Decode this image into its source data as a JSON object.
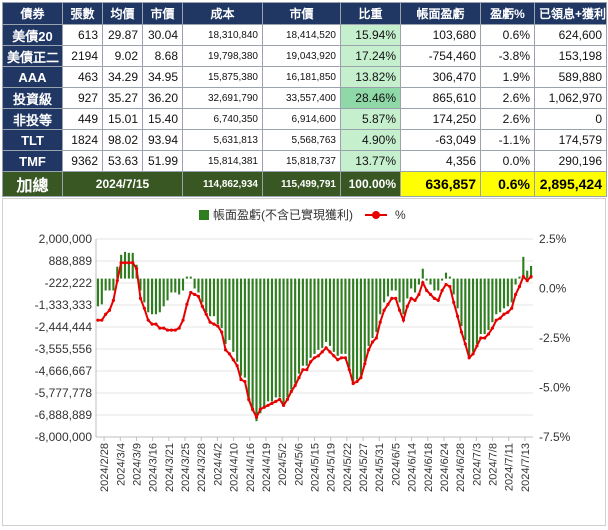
{
  "table": {
    "headers": [
      "債券",
      "張數",
      "均價",
      "市價",
      "成本",
      "市價",
      "比重",
      "帳面盈虧",
      "盈虧%",
      "已領息+獲利"
    ],
    "rows": [
      {
        "name": "美債20",
        "shares": "613",
        "avg": "29.87",
        "price": "30.04",
        "cost": "18,310,840",
        "value": "18,414,520",
        "weight": "15.94%",
        "pnl": "103,680",
        "pnl_pct": "0.6%",
        "income": "624,600"
      },
      {
        "name": "美債正二",
        "shares": "2194",
        "avg": "9.02",
        "price": "8.68",
        "cost": "19,798,380",
        "value": "19,043,920",
        "weight": "17.24%",
        "pnl": "-754,460",
        "pnl_pct": "-3.8%",
        "income": "153,198"
      },
      {
        "name": "AAA",
        "shares": "463",
        "avg": "34.29",
        "price": "34.95",
        "cost": "15,875,380",
        "value": "16,181,850",
        "weight": "13.82%",
        "pnl": "306,470",
        "pnl_pct": "1.9%",
        "income": "589,880"
      },
      {
        "name": "投資級",
        "shares": "927",
        "avg": "35.27",
        "price": "36.20",
        "cost": "32,691,790",
        "value": "33,557,400",
        "weight": "28.46%",
        "pnl": "865,610",
        "pnl_pct": "2.6%",
        "income": "1,062,970"
      },
      {
        "name": "非投等",
        "shares": "449",
        "avg": "15.01",
        "price": "15.40",
        "cost": "6,740,350",
        "value": "6,914,600",
        "weight": "5.87%",
        "pnl": "174,250",
        "pnl_pct": "2.6%",
        "income": "0"
      },
      {
        "name": "TLT",
        "shares": "1824",
        "avg": "98.02",
        "price": "93.94",
        "cost": "5,631,813",
        "value": "5,568,763",
        "weight": "4.90%",
        "pnl": "-63,049",
        "pnl_pct": "-1.1%",
        "income": "174,579"
      },
      {
        "name": "TMF",
        "shares": "9362",
        "avg": "53.63",
        "price": "51.99",
        "cost": "15,814,381",
        "value": "15,818,737",
        "weight": "13.77%",
        "pnl": "4,356",
        "pnl_pct": "0.0%",
        "income": "290,196"
      }
    ],
    "total": {
      "label": "加總",
      "date": "2024/7/15",
      "cost": "114,862,934",
      "value": "115,499,791",
      "weight": "100.00%",
      "pnl": "636,857",
      "pnl_pct": "0.6%",
      "income": "2,895,424"
    }
  },
  "colors": {
    "header_bg": "#203764",
    "total_bg": "#385723",
    "highlight": "#ffff00",
    "bar": "#2e7d1e",
    "line": "#e60000"
  },
  "chart_data": {
    "type": "bar+line",
    "legend": [
      "帳面盈虧(不含已實現獲利)",
      "%"
    ],
    "legend_position": "top",
    "left_axis": {
      "min": -8000000,
      "max": 2000000,
      "ticks": [
        "2,000,000",
        "888,889",
        "-222,222",
        "-1,333,333",
        "-2,444,444",
        "-3,555,556",
        "-4,666,667",
        "-5,777,778",
        "-6,888,889",
        "-8,000,000"
      ]
    },
    "right_axis": {
      "min": -7.5,
      "max": 2.5,
      "ticks": [
        "2.5%",
        "0.0%",
        "-2.5%",
        "-5.0%",
        "-7.5%"
      ]
    },
    "x_tick_labels": [
      "2024/2/28",
      "2024/3/4",
      "2024/3/9",
      "2024/3/16",
      "2024/3/21",
      "2024/3/25",
      "2024/3/28",
      "2024/4/2",
      "2024/4/10",
      "2024/4/16",
      "2024/4/19",
      "2024/5/2",
      "2024/5/6",
      "2024/5/15",
      "2024/5/19",
      "2024/5/22",
      "2024/5/27",
      "2024/5/31",
      "2024/6/5",
      "2024/6/14",
      "2024/6/18",
      "2024/6/24",
      "2024/6/28",
      "2024/7/3",
      "2024/7/8",
      "2024/7/11",
      "2024/7/13"
    ],
    "series": [
      {
        "name": "帳面盈虧(不含已實現獲利)",
        "type": "bar",
        "axis": "left",
        "values": [
          -1400000,
          -1300000,
          -600000,
          -600000,
          -600000,
          600000,
          1200000,
          1350000,
          1300000,
          1300000,
          700000,
          -600000,
          -1200000,
          -1700000,
          -1800000,
          -1800000,
          -1700000,
          -1400000,
          -1100000,
          -700000,
          -700000,
          -800000,
          -600000,
          100000,
          100000,
          -500000,
          -700000,
          -1200000,
          -1700000,
          -1900000,
          -1900000,
          -2300000,
          -2500000,
          -3300000,
          -3100000,
          -3700000,
          -4200000,
          -4900000,
          -5000000,
          -6200000,
          -6700000,
          -7200000,
          -6800000,
          -6500000,
          -6200000,
          -6200000,
          -6000000,
          -6000000,
          -6400000,
          -6000000,
          -5600000,
          -5300000,
          -4800000,
          -4400000,
          -4400000,
          -4000000,
          -3800000,
          -3600000,
          -3500000,
          -3200000,
          -3400000,
          -3700000,
          -3900000,
          -3800000,
          -3800000,
          -4500000,
          -5300000,
          -5100000,
          -4900000,
          -4200000,
          -3400000,
          -3000000,
          -2700000,
          -1800000,
          -1200000,
          -900000,
          -600000,
          -600000,
          -1200000,
          -1800000,
          -1000000,
          -500000,
          -700000,
          -300000,
          500000,
          -100000,
          -300000,
          -600000,
          -600000,
          -100000,
          300000,
          100000,
          -800000,
          -1500000,
          -2400000,
          -3100000,
          -4000000,
          -3700000,
          -3300000,
          -2800000,
          -2800000,
          -2600000,
          -2200000,
          -1800000,
          -1700000,
          -1500000,
          -1400000,
          -1200000,
          -300000,
          100000,
          1100000,
          400000,
          636857
        ]
      },
      {
        "name": "%",
        "type": "line",
        "axis": "right",
        "values": [
          -1.6,
          -1.6,
          -1.3,
          -1.1,
          -0.6,
          0.4,
          1.3,
          1.3,
          1.3,
          1.3,
          1.0,
          -0.5,
          -1.0,
          -1.6,
          -1.8,
          -1.8,
          -2.0,
          -2.0,
          -2.1,
          -2.1,
          -2.1,
          -2.0,
          -1.6,
          -0.8,
          -0.2,
          -0.3,
          -0.4,
          -0.9,
          -1.3,
          -1.7,
          -1.8,
          -1.9,
          -2.2,
          -3.1,
          -3.3,
          -3.6,
          -3.9,
          -4.6,
          -4.7,
          -5.6,
          -6.1,
          -6.5,
          -6.1,
          -6.0,
          -5.9,
          -5.8,
          -5.7,
          -5.6,
          -5.9,
          -5.6,
          -5.2,
          -4.9,
          -4.5,
          -4.1,
          -4.1,
          -3.7,
          -3.5,
          -3.4,
          -3.2,
          -3.0,
          -3.2,
          -3.4,
          -3.6,
          -3.5,
          -3.5,
          -4.1,
          -4.8,
          -4.7,
          -4.5,
          -3.8,
          -3.1,
          -2.7,
          -2.5,
          -1.7,
          -1.1,
          -0.8,
          -0.5,
          -0.5,
          -1.1,
          -1.6,
          -0.9,
          -0.5,
          -0.6,
          -0.3,
          0.3,
          -0.1,
          -0.3,
          -0.5,
          -0.6,
          -0.1,
          0.2,
          0.1,
          -0.7,
          -1.4,
          -2.2,
          -2.8,
          -3.5,
          -3.3,
          -2.9,
          -2.5,
          -2.5,
          -2.3,
          -2.0,
          -1.6,
          -1.5,
          -1.3,
          -1.2,
          -1.0,
          -0.3,
          0.1,
          0.6,
          0.4,
          0.6
        ]
      }
    ]
  }
}
